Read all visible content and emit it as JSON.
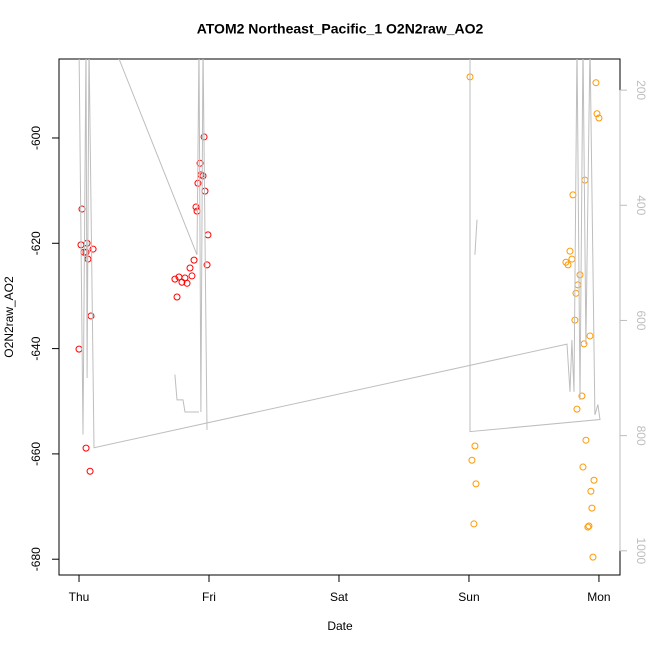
{
  "chart_data": {
    "type": "scatter",
    "title": "ATOM2 Northeast_Pacific_1 O2N2raw_AO2",
    "x_label": "Date",
    "y_label": "O2N2raw_AO2",
    "xlim": [
      -0.154,
      4.162
    ],
    "xticks": [
      {
        "value": 0,
        "label": "Thu"
      },
      {
        "value": 1,
        "label": "Fri"
      },
      {
        "value": 2,
        "label": "Sat"
      },
      {
        "value": 3,
        "label": "Sun"
      },
      {
        "value": 4,
        "label": "Mon"
      }
    ],
    "ylim": [
      -683,
      -585
    ],
    "yticks": [
      -680,
      -660,
      -640,
      -620,
      -600
    ],
    "y2lim": [
      1042,
      146
    ],
    "y2ticks": [
      200,
      400,
      600,
      800,
      1000
    ],
    "series": [
      {
        "color": "#ff0000",
        "x": [
          0.0,
          0.023,
          0.015,
          0.038,
          0.062,
          0.054,
          0.069,
          0.108,
          0.092,
          0.054,
          0.085,
          0.738,
          0.754,
          0.769,
          0.792,
          0.815,
          0.831,
          0.854,
          0.869,
          0.885,
          0.9,
          0.908,
          0.915,
          0.931,
          0.938,
          0.954,
          0.962,
          0.969,
          0.985,
          0.992
        ],
        "values": [
          -640.1,
          -613.5,
          -620.3,
          -621.7,
          -620.0,
          -621.7,
          -623.0,
          -621.1,
          -633.8,
          -658.9,
          -663.3,
          -626.8,
          -630.2,
          -626.4,
          -627.4,
          -626.6,
          -627.6,
          -624.7,
          -626.2,
          -623.2,
          -613.1,
          -613.9,
          -608.6,
          -604.8,
          -607.0,
          -607.2,
          -599.8,
          -610.1,
          -624.1,
          -618.4
        ]
      },
      {
        "color": "#ff9900",
        "x": [
          3.008,
          3.023,
          3.046,
          3.054,
          3.038,
          3.746,
          3.762,
          3.777,
          3.792,
          3.8,
          3.815,
          3.823,
          3.838,
          3.854,
          3.831,
          3.869,
          3.877,
          3.885,
          3.892,
          3.9,
          3.915,
          3.923,
          3.931,
          3.938,
          3.946,
          3.954,
          3.962,
          3.977,
          3.985,
          4.0
        ],
        "values": [
          -588.4,
          -661.2,
          -658.5,
          -665.7,
          -673.3,
          -623.6,
          -624.1,
          -621.5,
          -623.0,
          -610.8,
          -634.6,
          -629.5,
          -627.9,
          -626.0,
          -651.5,
          -649.0,
          -662.5,
          -639.1,
          -608.0,
          -657.4,
          -673.9,
          -673.7,
          -637.6,
          -667.1,
          -670.3,
          -679.6,
          -665.0,
          -589.5,
          -595.4,
          -596.2
        ]
      },
      {
        "color": "#bebebe",
        "type": "line",
        "axis": "y2",
        "x": [
          0.0,
          0.031,
          0.054,
          0.062,
          0.077,
          0.115,
          3.754,
          3.777,
          3.792,
          3.808,
          3.831,
          3.854,
          3.877,
          3.9,
          3.931,
          3.969,
          3.992,
          4.008,
          3.008,
          3.008,
          null,
          0.262,
          0.908,
          0.923,
          0.938,
          0.954,
          0.985,
          null,
          0.738,
          0.754,
          0.8,
          0.815,
          0.923,
          null,
          3.046,
          3.062
        ],
        "values": [
          120,
          798,
          120,
          700,
          120,
          821,
          641,
          724,
          634,
          724,
          120,
          738,
          120,
          641,
          120,
          764,
          746,
          772,
          793,
          120,
          null,
          120,
          486,
          120,
          759,
          120,
          790,
          null,
          694,
          738,
          738,
          759,
          759,
          null,
          486,
          425
        ]
      }
    ]
  }
}
